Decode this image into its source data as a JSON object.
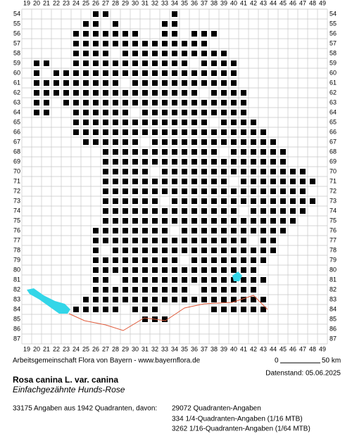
{
  "map": {
    "columns": [
      19,
      20,
      21,
      22,
      23,
      24,
      25,
      26,
      27,
      28,
      29,
      30,
      31,
      32,
      33,
      34,
      35,
      36,
      37,
      38,
      39,
      40,
      41,
      42,
      43,
      44,
      45,
      46,
      47,
      48,
      49
    ],
    "rows": [
      54,
      55,
      56,
      57,
      58,
      59,
      60,
      61,
      62,
      63,
      64,
      65,
      66,
      67,
      68,
      69,
      70,
      71,
      72,
      73,
      74,
      75,
      76,
      77,
      78,
      79,
      80,
      81,
      82,
      83,
      84,
      85,
      86,
      87
    ],
    "scale_start": "0",
    "scale_end": "50 km"
  },
  "footer": {
    "credit": "Arbeitsgemeinschaft Flora von Bayern - www.bayernflora.de",
    "date": "Datenstand: 05.06.2025",
    "title": "Rosa canina L. var. canina",
    "subtitle": "Einfachgezähnte Hunds-Rose",
    "summary": "33175 Angaben aus 1942 Quadranten, davon:",
    "details": [
      "29072 Quadranten-Angaben",
      "334 1/4-Quadranten-Angaben (1/16 MTB)",
      "3262 1/16-Quadranten-Angaben (1/64 MTB)"
    ]
  }
}
